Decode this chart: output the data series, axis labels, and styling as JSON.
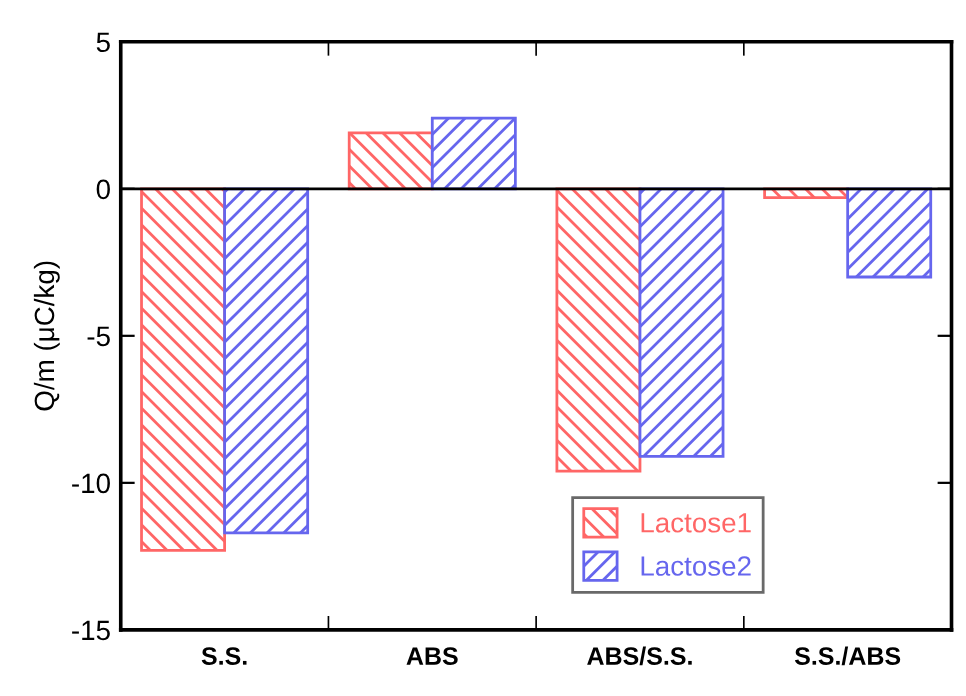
{
  "chart_data": {
    "type": "bar",
    "ylabel": "Q/m (μC/kg)",
    "categories": [
      "S.S.",
      "ABS",
      "ABS/S.S.",
      "S.S./ABS"
    ],
    "series": [
      {
        "name": "Lactose1",
        "color": "#ff6666",
        "values": [
          -12.3,
          1.9,
          -9.6,
          -0.3
        ]
      },
      {
        "name": "Lactose2",
        "color": "#6666ee",
        "values": [
          -11.7,
          2.4,
          -9.1,
          -3.0
        ]
      }
    ],
    "ylim": [
      -15,
      5
    ],
    "yticks": [
      -15,
      -10,
      -5,
      0,
      5
    ],
    "ref_lines": [
      {
        "axis": "y",
        "value": 0,
        "color": "#000000"
      }
    ],
    "legend": "bottom right"
  }
}
